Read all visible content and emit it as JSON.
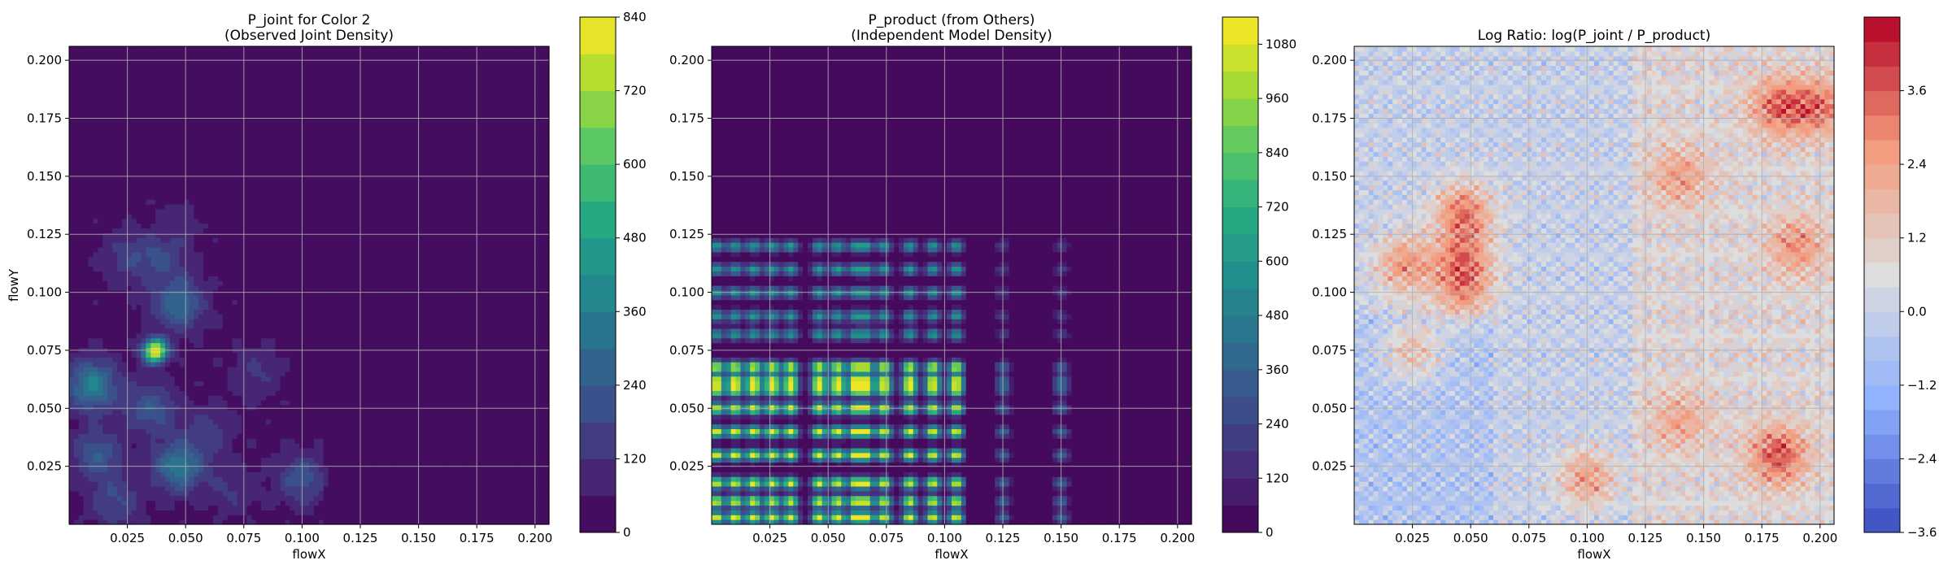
{
  "chart_data": [
    {
      "type": "heatmap",
      "title_lines": [
        "P_joint for Color 2",
        "(Observed Joint Density)"
      ],
      "xlabel": "flowX",
      "ylabel": "flowY",
      "xlim": [
        0.0,
        0.206
      ],
      "ylim": [
        0.0,
        0.206
      ],
      "xticks": [
        "0.025",
        "0.050",
        "0.075",
        "0.100",
        "0.125",
        "0.150",
        "0.175",
        "0.200"
      ],
      "yticks": [
        "0.025",
        "0.050",
        "0.075",
        "0.100",
        "0.125",
        "0.150",
        "0.175",
        "0.200"
      ],
      "grid": true,
      "colormap": "viridis",
      "colorbar": {
        "min": 0,
        "max": 840,
        "levels": 14,
        "ticks": [
          "0",
          "120",
          "240",
          "360",
          "480",
          "600",
          "720",
          "840"
        ]
      },
      "hotspots": [
        {
          "x": 0.037,
          "y": 0.075,
          "value": 840
        },
        {
          "x": 0.01,
          "y": 0.06,
          "value": 340
        },
        {
          "x": 0.047,
          "y": 0.095,
          "value": 260
        },
        {
          "x": 0.047,
          "y": 0.025,
          "value": 300
        },
        {
          "x": 0.035,
          "y": 0.05,
          "value": 200
        },
        {
          "x": 0.012,
          "y": 0.03,
          "value": 200
        },
        {
          "x": 0.1,
          "y": 0.02,
          "value": 180
        },
        {
          "x": 0.04,
          "y": 0.115,
          "value": 140
        },
        {
          "x": 0.025,
          "y": 0.115,
          "value": 110
        },
        {
          "x": 0.08,
          "y": 0.065,
          "value": 90
        },
        {
          "x": 0.06,
          "y": 0.04,
          "value": 120
        },
        {
          "x": 0.02,
          "y": 0.01,
          "value": 150
        },
        {
          "x": 0.07,
          "y": 0.015,
          "value": 90
        },
        {
          "x": 0.05,
          "y": 0.135,
          "value": 70
        }
      ]
    },
    {
      "type": "heatmap",
      "title_lines": [
        "P_product (from Others)",
        "(Independent Model Density)"
      ],
      "xlabel": "flowX",
      "ylabel": "",
      "xlim": [
        0.0,
        0.206
      ],
      "ylim": [
        0.0,
        0.206
      ],
      "xticks": [
        "0.025",
        "0.050",
        "0.075",
        "0.100",
        "0.125",
        "0.150",
        "0.175",
        "0.200"
      ],
      "yticks": [
        "0.025",
        "0.050",
        "0.075",
        "0.100",
        "0.125",
        "0.150",
        "0.175",
        "0.200"
      ],
      "grid": true,
      "colormap": "viridis",
      "colorbar": {
        "min": 0,
        "max": 1140,
        "levels": 19,
        "ticks": [
          "0",
          "120",
          "240",
          "360",
          "480",
          "600",
          "720",
          "840",
          "960",
          "1080"
        ]
      },
      "x_marginal_peaks": [
        0.002,
        0.01,
        0.018,
        0.026,
        0.034,
        0.046,
        0.054,
        0.062,
        0.066,
        0.074,
        0.085,
        0.095,
        0.105,
        0.125,
        0.15
      ],
      "y_marginal_peaks": [
        0.003,
        0.01,
        0.018,
        0.03,
        0.04,
        0.05,
        0.058,
        0.062,
        0.068,
        0.082,
        0.09,
        0.1,
        0.11,
        0.12
      ],
      "peak_value": 1140
    },
    {
      "type": "heatmap",
      "title_lines": [
        "Log Ratio: log(P_joint / P_product)"
      ],
      "xlabel": "flowX",
      "ylabel": "",
      "xlim": [
        0.0,
        0.206
      ],
      "ylim": [
        0.0,
        0.206
      ],
      "xticks": [
        "0.025",
        "0.050",
        "0.075",
        "0.100",
        "0.125",
        "0.150",
        "0.175",
        "0.200"
      ],
      "yticks": [
        "0.025",
        "0.050",
        "0.075",
        "0.100",
        "0.125",
        "0.150",
        "0.175",
        "0.200"
      ],
      "grid": true,
      "colormap": "coolwarm",
      "colorbar": {
        "min": -3.6,
        "max": 4.8,
        "levels": 21,
        "ticks": [
          "−3.6",
          "−2.4",
          "−1.2",
          "0.0",
          "1.2",
          "2.4",
          "3.6"
        ]
      },
      "hotspots": [
        {
          "x": 0.047,
          "y": 0.135,
          "value": 3.0
        },
        {
          "x": 0.047,
          "y": 0.115,
          "value": 2.6
        },
        {
          "x": 0.047,
          "y": 0.1,
          "value": 2.4
        },
        {
          "x": 0.022,
          "y": 0.112,
          "value": 2.6
        },
        {
          "x": 0.025,
          "y": 0.075,
          "value": 2.0
        },
        {
          "x": 0.1,
          "y": 0.02,
          "value": 2.4
        },
        {
          "x": 0.182,
          "y": 0.03,
          "value": 3.0
        },
        {
          "x": 0.182,
          "y": 0.18,
          "value": 2.6
        },
        {
          "x": 0.2,
          "y": 0.18,
          "value": 2.4
        },
        {
          "x": 0.14,
          "y": 0.15,
          "value": 1.8
        },
        {
          "x": 0.14,
          "y": 0.045,
          "value": 1.6
        },
        {
          "x": 0.19,
          "y": 0.12,
          "value": 2.0
        }
      ]
    }
  ]
}
